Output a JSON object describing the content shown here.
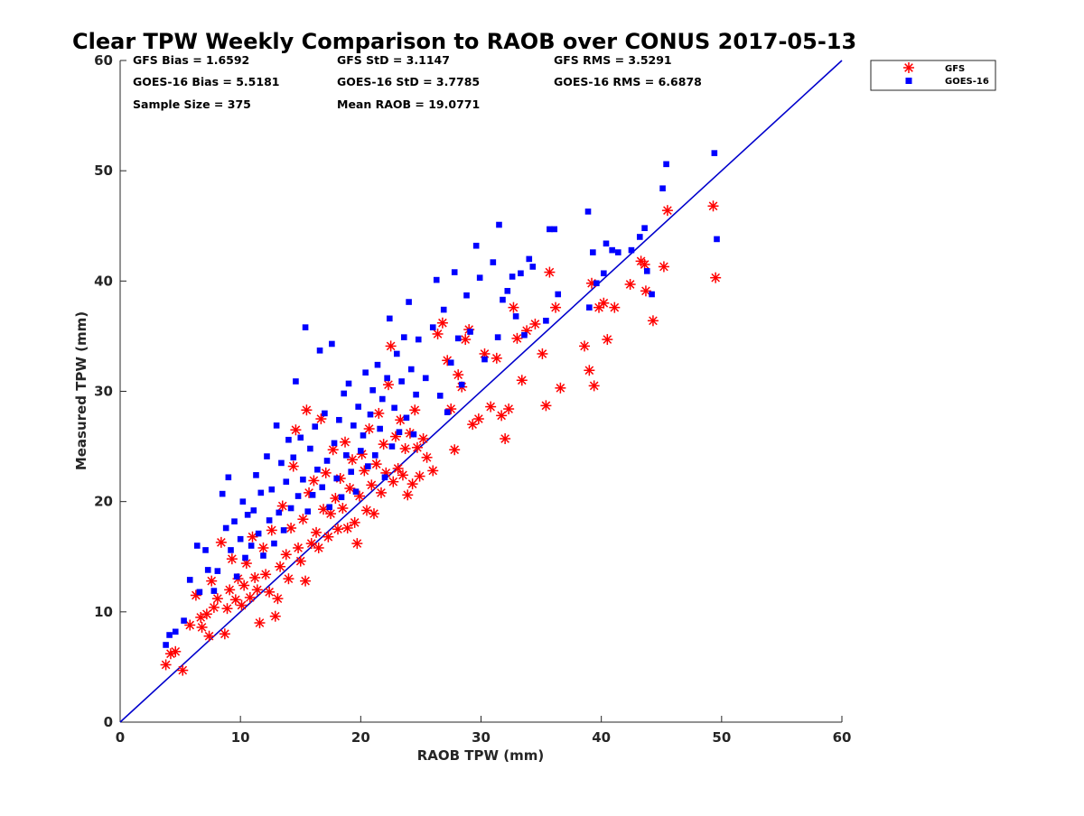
{
  "title": "Clear TPW Weekly Comparison to RAOB over CONUS 2017-05-13",
  "stats": [
    [
      "GFS Bias = 1.6592",
      "GFS StD = 3.1147",
      "GFS RMS = 3.5291"
    ],
    [
      "GOES-16 Bias = 5.5181",
      "GOES-16 StD = 3.7785",
      "GOES-16 RMS = 6.6878"
    ],
    [
      "Sample Size = 375",
      "Mean RAOB = 19.0771",
      ""
    ]
  ],
  "legend": [
    {
      "name": "GFS",
      "marker": "asterisk",
      "color": "#ff0000"
    },
    {
      "name": "GOES-16",
      "marker": "square",
      "color": "#0000ff"
    }
  ],
  "chart_data": {
    "type": "scatter",
    "title": "Clear TPW Weekly Comparison to RAOB over CONUS 2017-05-13",
    "xlabel": "RAOB TPW (mm)",
    "ylabel": "Measured TPW (mm)",
    "xlim": [
      0,
      60
    ],
    "ylim": [
      0,
      60
    ],
    "xticks": [
      0,
      10,
      20,
      30,
      40,
      50,
      60
    ],
    "yticks": [
      0,
      10,
      20,
      30,
      40,
      50,
      60
    ],
    "grid": false,
    "legend_position": "top-right outside",
    "reference_line": {
      "type": "one-to-one",
      "x": [
        0,
        60
      ],
      "y": [
        0,
        60
      ],
      "color": "#0000cc"
    },
    "series": [
      {
        "name": "GFS",
        "marker": "asterisk",
        "color": "#ff0000",
        "points": [
          [
            3.8,
            5.2
          ],
          [
            4.2,
            6.2
          ],
          [
            4.6,
            6.4
          ],
          [
            5.2,
            4.7
          ],
          [
            5.8,
            8.8
          ],
          [
            6.3,
            11.5
          ],
          [
            6.7,
            9.5
          ],
          [
            6.8,
            8.6
          ],
          [
            7.2,
            9.8
          ],
          [
            7.4,
            7.8
          ],
          [
            7.6,
            12.8
          ],
          [
            7.8,
            10.4
          ],
          [
            8.1,
            11.2
          ],
          [
            8.4,
            16.3
          ],
          [
            8.7,
            8.0
          ],
          [
            8.9,
            10.3
          ],
          [
            9.1,
            12.0
          ],
          [
            9.3,
            14.8
          ],
          [
            9.6,
            11.1
          ],
          [
            9.8,
            13.0
          ],
          [
            10.1,
            10.6
          ],
          [
            10.3,
            12.4
          ],
          [
            10.5,
            14.4
          ],
          [
            10.8,
            11.3
          ],
          [
            11.0,
            16.8
          ],
          [
            11.2,
            13.1
          ],
          [
            11.4,
            12.0
          ],
          [
            11.6,
            9.0
          ],
          [
            11.9,
            15.8
          ],
          [
            12.1,
            13.4
          ],
          [
            12.4,
            11.8
          ],
          [
            12.6,
            17.4
          ],
          [
            12.9,
            9.6
          ],
          [
            13.1,
            11.2
          ],
          [
            13.3,
            14.1
          ],
          [
            13.5,
            19.6
          ],
          [
            13.8,
            15.2
          ],
          [
            14.0,
            13.0
          ],
          [
            14.2,
            17.6
          ],
          [
            14.4,
            23.2
          ],
          [
            14.6,
            26.5
          ],
          [
            14.8,
            15.8
          ],
          [
            15.0,
            14.6
          ],
          [
            15.2,
            18.4
          ],
          [
            15.4,
            12.8
          ],
          [
            15.5,
            28.3
          ],
          [
            15.7,
            20.8
          ],
          [
            15.9,
            16.2
          ],
          [
            16.1,
            21.9
          ],
          [
            16.3,
            17.2
          ],
          [
            16.5,
            15.8
          ],
          [
            16.7,
            27.5
          ],
          [
            16.9,
            19.3
          ],
          [
            17.1,
            22.6
          ],
          [
            17.3,
            16.8
          ],
          [
            17.5,
            18.9
          ],
          [
            17.7,
            24.7
          ],
          [
            17.9,
            20.3
          ],
          [
            18.1,
            17.5
          ],
          [
            18.3,
            22.1
          ],
          [
            18.5,
            19.4
          ],
          [
            18.7,
            25.4
          ],
          [
            18.9,
            17.6
          ],
          [
            19.1,
            21.2
          ],
          [
            19.3,
            23.8
          ],
          [
            19.5,
            18.1
          ],
          [
            19.7,
            16.2
          ],
          [
            19.9,
            20.5
          ],
          [
            20.1,
            24.3
          ],
          [
            20.3,
            22.8
          ],
          [
            20.5,
            19.2
          ],
          [
            20.7,
            26.6
          ],
          [
            20.9,
            21.5
          ],
          [
            21.1,
            18.9
          ],
          [
            21.3,
            23.4
          ],
          [
            21.5,
            28.0
          ],
          [
            21.7,
            20.8
          ],
          [
            21.9,
            25.2
          ],
          [
            22.1,
            22.6
          ],
          [
            22.3,
            30.6
          ],
          [
            22.5,
            34.1
          ],
          [
            22.7,
            21.8
          ],
          [
            22.9,
            25.9
          ],
          [
            23.1,
            23.0
          ],
          [
            23.3,
            27.4
          ],
          [
            23.5,
            22.4
          ],
          [
            23.7,
            24.8
          ],
          [
            23.9,
            20.6
          ],
          [
            24.1,
            26.2
          ],
          [
            24.3,
            21.6
          ],
          [
            24.5,
            28.3
          ],
          [
            24.7,
            24.9
          ],
          [
            24.9,
            22.3
          ],
          [
            25.2,
            25.7
          ],
          [
            25.5,
            24.0
          ],
          [
            26.0,
            22.8
          ],
          [
            26.4,
            35.2
          ],
          [
            26.8,
            36.2
          ],
          [
            27.2,
            32.8
          ],
          [
            27.5,
            28.4
          ],
          [
            27.8,
            24.7
          ],
          [
            28.1,
            31.5
          ],
          [
            28.4,
            30.4
          ],
          [
            28.7,
            34.7
          ],
          [
            29.0,
            35.6
          ],
          [
            29.3,
            27.0
          ],
          [
            29.8,
            27.5
          ],
          [
            30.3,
            33.4
          ],
          [
            30.8,
            28.6
          ],
          [
            31.3,
            33.0
          ],
          [
            31.7,
            27.8
          ],
          [
            32.0,
            25.7
          ],
          [
            32.3,
            28.4
          ],
          [
            32.7,
            37.6
          ],
          [
            33.0,
            34.8
          ],
          [
            33.4,
            31.0
          ],
          [
            33.8,
            35.5
          ],
          [
            34.5,
            36.1
          ],
          [
            35.1,
            33.4
          ],
          [
            35.4,
            28.7
          ],
          [
            35.7,
            40.8
          ],
          [
            36.2,
            37.6
          ],
          [
            36.6,
            30.3
          ],
          [
            38.6,
            34.1
          ],
          [
            39.0,
            31.9
          ],
          [
            39.2,
            39.8
          ],
          [
            39.4,
            30.5
          ],
          [
            39.8,
            37.6
          ],
          [
            40.2,
            38.0
          ],
          [
            40.5,
            34.7
          ],
          [
            41.1,
            37.6
          ],
          [
            42.4,
            39.7
          ],
          [
            43.3,
            41.8
          ],
          [
            43.6,
            41.5
          ],
          [
            43.7,
            39.1
          ],
          [
            44.3,
            36.4
          ],
          [
            45.2,
            41.3
          ],
          [
            45.5,
            46.4
          ],
          [
            49.3,
            46.8
          ],
          [
            49.5,
            40.3
          ]
        ]
      },
      {
        "name": "GOES-16",
        "marker": "square",
        "color": "#0000ff",
        "points": [
          [
            3.8,
            7.0
          ],
          [
            4.1,
            7.9
          ],
          [
            4.6,
            8.2
          ],
          [
            5.3,
            9.2
          ],
          [
            5.8,
            12.9
          ],
          [
            6.4,
            16.0
          ],
          [
            6.6,
            11.8
          ],
          [
            7.1,
            15.6
          ],
          [
            7.3,
            13.8
          ],
          [
            7.8,
            11.9
          ],
          [
            8.1,
            13.7
          ],
          [
            8.5,
            20.7
          ],
          [
            8.8,
            17.6
          ],
          [
            9.0,
            22.2
          ],
          [
            9.2,
            15.6
          ],
          [
            9.5,
            18.2
          ],
          [
            9.7,
            13.2
          ],
          [
            10.0,
            16.6
          ],
          [
            10.2,
            20.0
          ],
          [
            10.4,
            14.9
          ],
          [
            10.6,
            18.8
          ],
          [
            10.9,
            16.0
          ],
          [
            11.1,
            19.2
          ],
          [
            11.3,
            22.4
          ],
          [
            11.5,
            17.1
          ],
          [
            11.7,
            20.8
          ],
          [
            11.9,
            15.1
          ],
          [
            12.2,
            24.1
          ],
          [
            12.4,
            18.3
          ],
          [
            12.6,
            21.1
          ],
          [
            12.8,
            16.2
          ],
          [
            13.0,
            26.9
          ],
          [
            13.2,
            19.0
          ],
          [
            13.4,
            23.5
          ],
          [
            13.6,
            17.4
          ],
          [
            13.8,
            21.8
          ],
          [
            14.0,
            25.6
          ],
          [
            14.2,
            19.4
          ],
          [
            14.4,
            24.0
          ],
          [
            14.6,
            30.9
          ],
          [
            14.8,
            20.5
          ],
          [
            15.0,
            25.8
          ],
          [
            15.2,
            22.0
          ],
          [
            15.4,
            35.8
          ],
          [
            15.6,
            19.1
          ],
          [
            15.8,
            24.8
          ],
          [
            16.0,
            20.6
          ],
          [
            16.2,
            26.8
          ],
          [
            16.4,
            22.9
          ],
          [
            16.6,
            33.7
          ],
          [
            16.8,
            21.3
          ],
          [
            17.0,
            28.0
          ],
          [
            17.2,
            23.7
          ],
          [
            17.4,
            19.5
          ],
          [
            17.6,
            34.3
          ],
          [
            17.8,
            25.3
          ],
          [
            18.0,
            22.1
          ],
          [
            18.2,
            27.4
          ],
          [
            18.4,
            20.4
          ],
          [
            18.6,
            29.8
          ],
          [
            18.8,
            24.2
          ],
          [
            19.0,
            30.7
          ],
          [
            19.2,
            22.7
          ],
          [
            19.4,
            26.9
          ],
          [
            19.6,
            20.9
          ],
          [
            19.8,
            28.6
          ],
          [
            20.0,
            24.6
          ],
          [
            20.2,
            26.0
          ],
          [
            20.4,
            31.7
          ],
          [
            20.6,
            23.2
          ],
          [
            20.8,
            27.9
          ],
          [
            21.0,
            30.1
          ],
          [
            21.2,
            24.2
          ],
          [
            21.4,
            32.4
          ],
          [
            21.6,
            26.6
          ],
          [
            21.8,
            29.3
          ],
          [
            22.0,
            22.2
          ],
          [
            22.2,
            31.2
          ],
          [
            22.4,
            36.6
          ],
          [
            22.6,
            25.0
          ],
          [
            22.8,
            28.5
          ],
          [
            23.0,
            33.4
          ],
          [
            23.2,
            26.3
          ],
          [
            23.4,
            30.9
          ],
          [
            23.6,
            34.9
          ],
          [
            23.8,
            27.6
          ],
          [
            24.0,
            38.1
          ],
          [
            24.2,
            32.0
          ],
          [
            24.4,
            26.1
          ],
          [
            24.6,
            29.7
          ],
          [
            24.8,
            34.7
          ],
          [
            25.4,
            31.2
          ],
          [
            26.0,
            35.8
          ],
          [
            26.3,
            40.1
          ],
          [
            26.6,
            29.6
          ],
          [
            26.9,
            37.4
          ],
          [
            27.2,
            28.1
          ],
          [
            27.5,
            32.6
          ],
          [
            27.8,
            40.8
          ],
          [
            28.1,
            34.8
          ],
          [
            28.4,
            30.6
          ],
          [
            28.8,
            38.7
          ],
          [
            29.1,
            35.4
          ],
          [
            29.6,
            43.2
          ],
          [
            29.9,
            40.3
          ],
          [
            30.3,
            32.9
          ],
          [
            31.0,
            41.7
          ],
          [
            31.4,
            34.9
          ],
          [
            31.5,
            45.1
          ],
          [
            31.8,
            38.3
          ],
          [
            32.2,
            39.1
          ],
          [
            32.6,
            40.4
          ],
          [
            32.9,
            36.8
          ],
          [
            33.3,
            40.7
          ],
          [
            33.6,
            35.1
          ],
          [
            34.0,
            42.0
          ],
          [
            34.3,
            41.3
          ],
          [
            35.4,
            36.4
          ],
          [
            35.7,
            44.7
          ],
          [
            36.1,
            44.7
          ],
          [
            36.4,
            38.8
          ],
          [
            38.9,
            46.3
          ],
          [
            39.0,
            37.6
          ],
          [
            39.3,
            42.6
          ],
          [
            39.6,
            39.8
          ],
          [
            40.2,
            40.7
          ],
          [
            40.4,
            43.4
          ],
          [
            40.9,
            42.8
          ],
          [
            41.4,
            42.6
          ],
          [
            42.5,
            42.8
          ],
          [
            43.2,
            44.0
          ],
          [
            43.6,
            44.8
          ],
          [
            43.8,
            40.9
          ],
          [
            44.2,
            38.8
          ],
          [
            45.1,
            48.4
          ],
          [
            45.4,
            50.6
          ],
          [
            49.4,
            51.6
          ],
          [
            49.6,
            43.8
          ]
        ]
      }
    ]
  }
}
